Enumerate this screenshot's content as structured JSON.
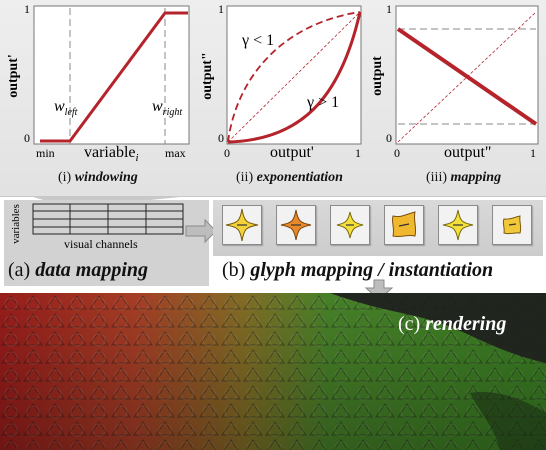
{
  "panels": [
    {
      "caption_num": "(i)",
      "caption_name": "windowing",
      "ylabel": "output'",
      "xlabel_main": "variable",
      "xlabel_sub": "i",
      "y_tick_top": "1",
      "y_tick_bottom": "0",
      "x_tick_left": "min",
      "x_tick_right": "max",
      "w_left_main": "w",
      "w_left_sub": "left",
      "w_right_main": "w",
      "w_right_sub": "right"
    },
    {
      "caption_num": "(ii)",
      "caption_name": "exponentiation",
      "ylabel": "output\"",
      "xlabel": "output'",
      "y_tick_top": "1",
      "y_tick_bottom": "0",
      "x_tick_left": "0",
      "x_tick_right": "1",
      "gamma_lt": "γ < 1",
      "gamma_gt": "γ > 1"
    },
    {
      "caption_num": "(iii)",
      "caption_name": "mapping",
      "ylabel": "output",
      "xlabel": "output\"",
      "y_tick_top": "1",
      "y_tick_bottom": "0",
      "x_tick_left": "0",
      "x_tick_right": "1"
    }
  ],
  "data_mapping": {
    "rows_label": "variables",
    "cols_label": "visual channels",
    "caption_num": "(a)",
    "caption_name": "data mapping"
  },
  "glyph_mapping": {
    "caption_num": "(b)",
    "caption_name": "glyph mapping / instantiation"
  },
  "rendering": {
    "caption_num": "(c)",
    "caption_name": "rendering"
  },
  "colors": {
    "curve": "#b5232b",
    "accent_green": "#48b537",
    "accent_red": "#c0392b"
  }
}
